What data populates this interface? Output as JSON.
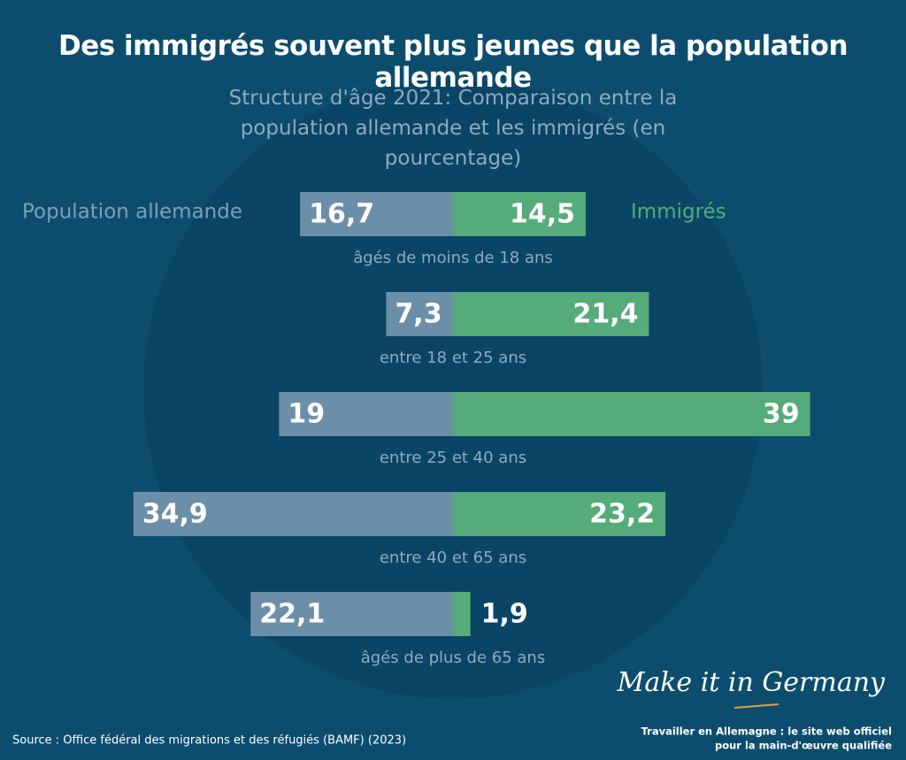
{
  "chart_data": {
    "type": "butterfly-bar",
    "title": "Des immigrés souvent plus jeunes que la population allemande",
    "subtitle": "Structure d'âge 2021: Comparaison entre la population allemande et les immigrés (en pourcentage)",
    "categories": [
      "âgés de moins de 18 ans",
      "entre 18 et 25 ans",
      "entre 25 et 40 ans",
      "entre 40 et 65 ans",
      "âgés de plus de 65 ans"
    ],
    "series": [
      {
        "name": "Population allemande",
        "color": "#6b8fa9",
        "values": [
          16.7,
          7.3,
          19,
          34.9,
          22.1
        ],
        "value_labels": [
          "16,7",
          "7,3",
          "19",
          "34,9",
          "22,1"
        ]
      },
      {
        "name": "Immigrés",
        "color": "#55ab7a",
        "values": [
          14.5,
          21.4,
          39,
          23.2,
          1.9
        ],
        "value_labels": [
          "14,5",
          "21,4",
          "39",
          "23,2",
          "1,9"
        ]
      }
    ],
    "source": "Source : Office fédéral des migrations et des réfugiés (BAMF) (2023)",
    "brand": "Make it in Germany",
    "brand_tagline": [
      "Travailler en Allemagne : le site web officiel",
      "pour la main-d'œuvre qualifiée"
    ]
  }
}
